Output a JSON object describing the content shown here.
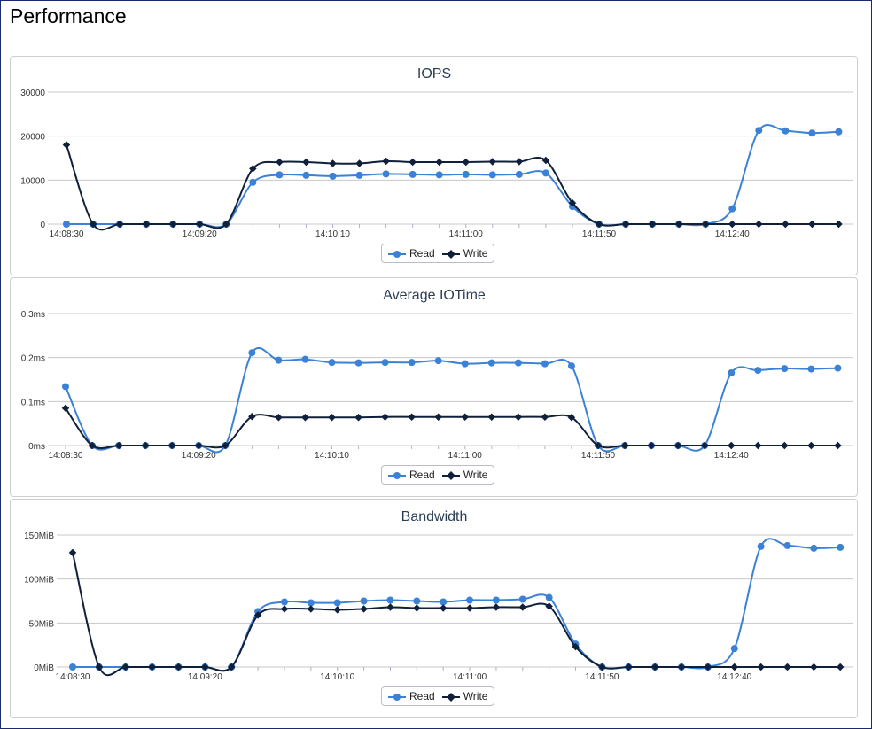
{
  "page": {
    "title": "Performance"
  },
  "colors": {
    "read": "#3b82d6",
    "write": "#10203a",
    "grid": "#c8c8c8",
    "title": "#2b3d55"
  },
  "legend": {
    "read_label": "Read",
    "write_label": "Write"
  },
  "chart_data": [
    {
      "type": "line",
      "title": "IOPS",
      "x_ticks": [
        "14:08:30",
        "14:09:20",
        "14:10:10",
        "14:11:00",
        "14:11:50",
        "14:12:40"
      ],
      "y_ticks": [
        "0",
        "10000",
        "20000",
        "30000"
      ],
      "ylim": [
        0,
        30000
      ],
      "series": [
        {
          "name": "Read",
          "values": [
            0,
            0,
            0,
            0,
            0,
            0,
            0,
            9500,
            11200,
            11100,
            10900,
            11100,
            11400,
            11300,
            11200,
            11300,
            11200,
            11300,
            11600,
            4000,
            0,
            0,
            0,
            0,
            0,
            3500,
            21300,
            21200,
            20700,
            21000
          ]
        },
        {
          "name": "Write",
          "values": [
            18000,
            0,
            0,
            0,
            0,
            0,
            0,
            12600,
            14100,
            14100,
            13800,
            13800,
            14300,
            14100,
            14100,
            14100,
            14200,
            14200,
            14500,
            4800,
            0,
            0,
            0,
            0,
            0,
            0,
            0,
            0,
            0,
            0
          ]
        }
      ]
    },
    {
      "type": "line",
      "title": "Average IOTime",
      "x_ticks": [
        "14:08:30",
        "14:09:20",
        "14:10:10",
        "14:11:00",
        "14:11:50",
        "14:12:40"
      ],
      "y_ticks": [
        "0ms",
        "0.1ms",
        "0.2ms",
        "0.3ms"
      ],
      "ylim": [
        0,
        0.3
      ],
      "series": [
        {
          "name": "Read",
          "values": [
            0.134,
            0,
            0,
            0,
            0,
            0,
            0,
            0.211,
            0.194,
            0.196,
            0.189,
            0.188,
            0.189,
            0.189,
            0.193,
            0.186,
            0.188,
            0.188,
            0.186,
            0.181,
            0,
            0,
            0,
            0,
            0,
            0.165,
            0.171,
            0.175,
            0.174,
            0.176
          ]
        },
        {
          "name": "Write",
          "values": [
            0.085,
            0,
            0,
            0,
            0,
            0,
            0,
            0.066,
            0.064,
            0.064,
            0.064,
            0.064,
            0.065,
            0.065,
            0.065,
            0.065,
            0.065,
            0.065,
            0.065,
            0.064,
            0,
            0,
            0,
            0,
            0,
            0,
            0,
            0,
            0,
            0
          ]
        }
      ]
    },
    {
      "type": "line",
      "title": "Bandwidth",
      "x_ticks": [
        "14:08:30",
        "14:09:20",
        "14:10:10",
        "14:11:00",
        "14:11:50",
        "14:12:40"
      ],
      "y_ticks": [
        "0MiB",
        "50MiB",
        "100MiB",
        "150MiB"
      ],
      "ylim": [
        0,
        150
      ],
      "series": [
        {
          "name": "Read",
          "values": [
            0,
            0,
            0,
            0,
            0,
            0,
            0,
            63,
            74,
            73,
            73,
            75,
            76,
            75,
            74,
            76,
            76,
            77,
            79,
            26,
            0,
            0,
            0,
            0,
            0,
            21,
            137,
            138,
            135,
            136
          ]
        },
        {
          "name": "Write",
          "values": [
            130,
            0,
            0,
            0,
            0,
            0,
            0,
            59,
            66,
            66,
            65,
            66,
            68,
            67,
            67,
            67,
            68,
            68,
            69,
            23,
            0,
            0,
            0,
            0,
            0,
            0,
            0,
            0,
            0,
            0
          ]
        }
      ]
    }
  ]
}
